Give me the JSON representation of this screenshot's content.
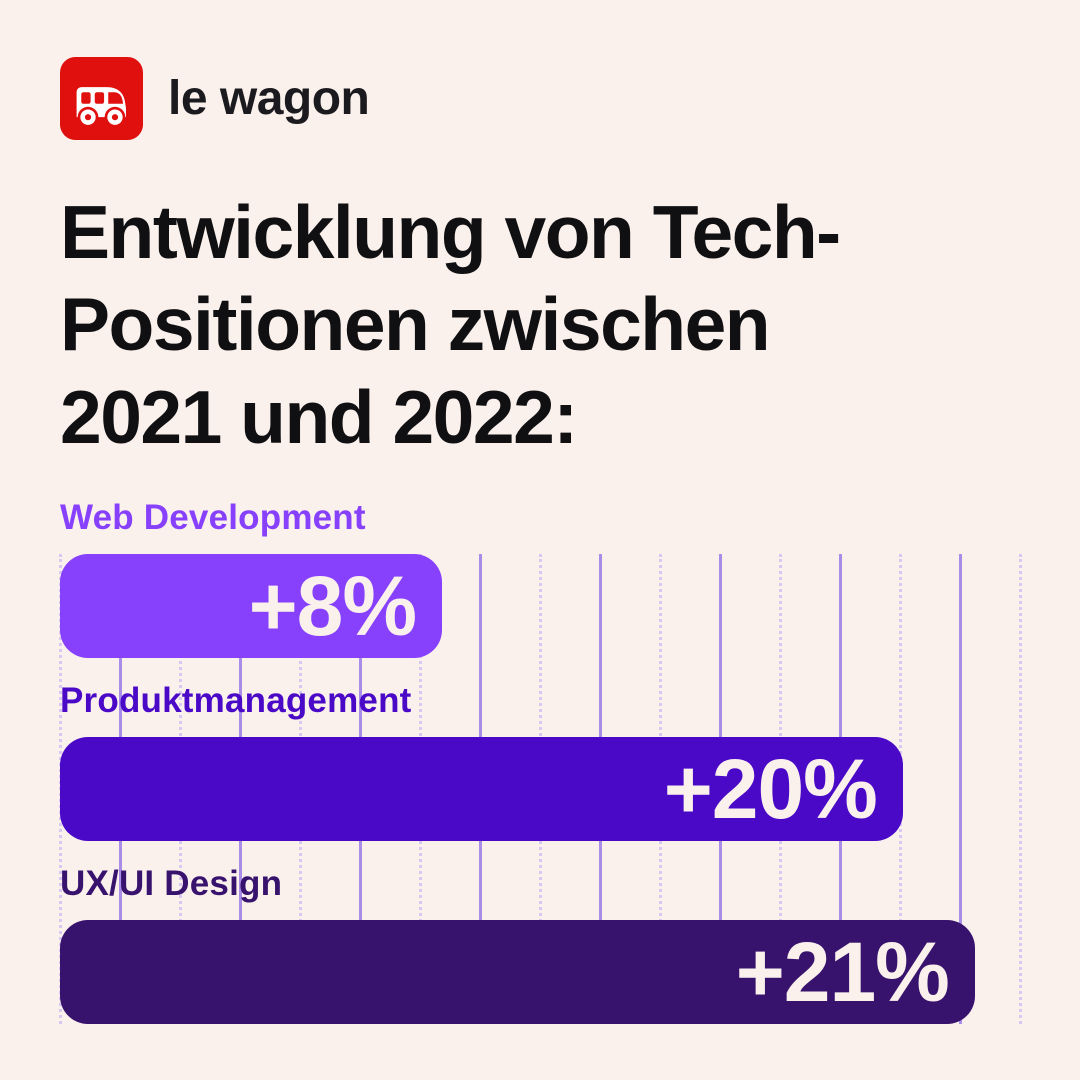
{
  "brand": {
    "wordmark": "le wagon",
    "logo_bg_color": "#E0100F",
    "logo_glyph": "bus-icon",
    "logo_glyph_color": "#FFFFFF"
  },
  "title": "Entwicklung von Tech-\nPositionen zwischen\n2021 und 2022:",
  "colors": {
    "background": "#FAF0EC",
    "ink": "#101013",
    "value_text": "#FAF0EC"
  },
  "chart_data": {
    "type": "bar",
    "orientation": "horizontal",
    "title": "Entwicklung von Tech-Positionen zwischen 2021 und 2022:",
    "categories": [
      "Web Development",
      "Produktmanagement",
      "UX/UI Design"
    ],
    "values": [
      8,
      20,
      21
    ],
    "unit": "percent change year-over-year",
    "xlim": [
      0,
      22
    ],
    "legend": "none",
    "grid": {
      "vertical_lines": 17,
      "alternating_styles": [
        "dotted",
        "solid"
      ],
      "solid_color": "#A98CE8",
      "dotted_color": "#D8C8F2"
    },
    "rows": [
      {
        "label": "Web Development",
        "value": 8,
        "value_label": "+8%",
        "width_pct": 39.8,
        "color": "#8740FB"
      },
      {
        "label": "Produktmanagement",
        "value": 20,
        "value_label": "+20%",
        "width_pct": 87.8,
        "color": "#4A08C7"
      },
      {
        "label": "UX/UI Design",
        "value": 21,
        "value_label": "+21%",
        "width_pct": 95.3,
        "color": "#38136E"
      }
    ]
  }
}
